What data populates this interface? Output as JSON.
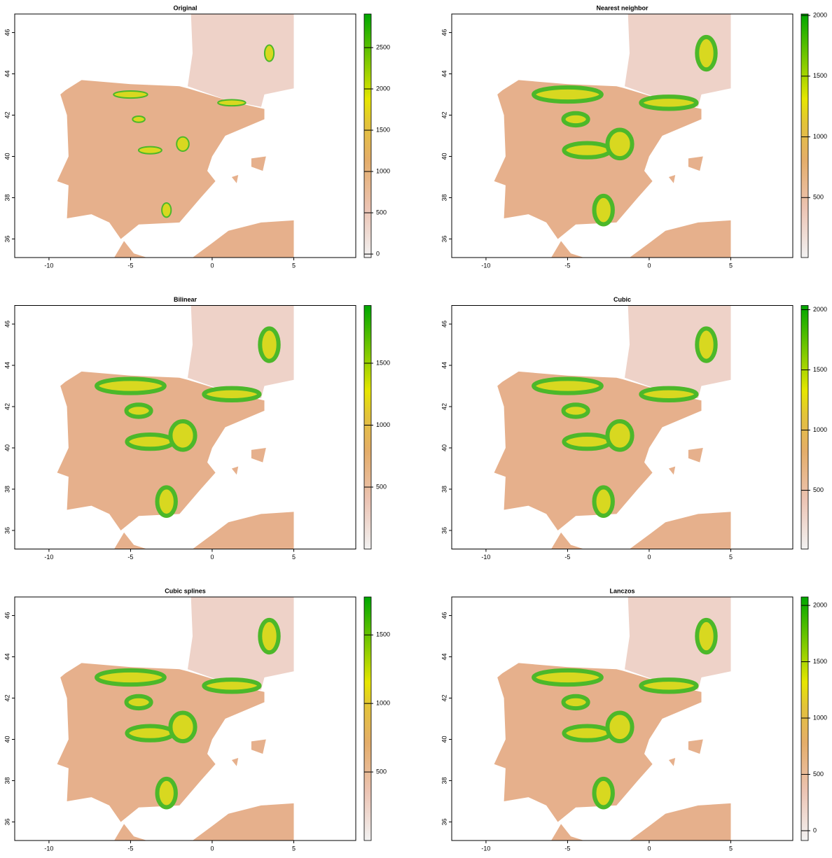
{
  "chart_data": [
    {
      "type": "raster",
      "title": "Original",
      "xlim": [
        -12.1,
        8.8
      ],
      "ylim": [
        35.1,
        46.9
      ],
      "xticks": [
        -10,
        -5,
        0,
        5
      ],
      "yticks": [
        36,
        38,
        40,
        42,
        44,
        46
      ],
      "zlim": [
        -42,
        2907
      ],
      "zticks": [
        0,
        500,
        1000,
        1500,
        2000,
        2500
      ]
    },
    {
      "type": "raster",
      "title": "Nearest neighbor",
      "xlim": [
        -12.1,
        8.8
      ],
      "ylim": [
        35.1,
        46.9
      ],
      "xticks": [
        -10,
        -5,
        0,
        5
      ],
      "yticks": [
        36,
        38,
        40,
        42,
        44,
        46
      ],
      "zlim": [
        6,
        2012
      ],
      "zticks": [
        500,
        1000,
        1500,
        2000
      ]
    },
    {
      "type": "raster",
      "title": "Bilinear",
      "xlim": [
        -12.1,
        8.8
      ],
      "ylim": [
        35.1,
        46.9
      ],
      "xticks": [
        -10,
        -5,
        0,
        5
      ],
      "yticks": [
        36,
        38,
        40,
        42,
        44,
        46
      ],
      "zlim": [
        0,
        1966
      ],
      "zticks": [
        500,
        1000,
        1500
      ]
    },
    {
      "type": "raster",
      "title": "Cubic",
      "xlim": [
        -12.1,
        8.8
      ],
      "ylim": [
        35.1,
        46.9
      ],
      "xticks": [
        -10,
        -5,
        0,
        5
      ],
      "yticks": [
        36,
        38,
        40,
        42,
        44,
        46
      ],
      "zlim": [
        12,
        2035
      ],
      "zticks": [
        500,
        1000,
        1500,
        2000
      ]
    },
    {
      "type": "raster",
      "title": "Cubic splines",
      "xlim": [
        -12.1,
        8.8
      ],
      "ylim": [
        35.1,
        46.9
      ],
      "xticks": [
        -10,
        -5,
        0,
        5
      ],
      "yticks": [
        36,
        38,
        40,
        42,
        44,
        46
      ],
      "zlim": [
        0,
        1777
      ],
      "zticks": [
        500,
        1000,
        1500
      ]
    },
    {
      "type": "raster",
      "title": "Lanczos",
      "xlim": [
        -12.1,
        8.8
      ],
      "ylim": [
        35.1,
        46.9
      ],
      "xticks": [
        -10,
        -5,
        0,
        5
      ],
      "yticks": [
        36,
        38,
        40,
        42,
        44,
        46
      ],
      "zlim": [
        -87,
        2075
      ],
      "zticks": [
        0,
        500,
        1000,
        1500,
        2000
      ]
    }
  ]
}
